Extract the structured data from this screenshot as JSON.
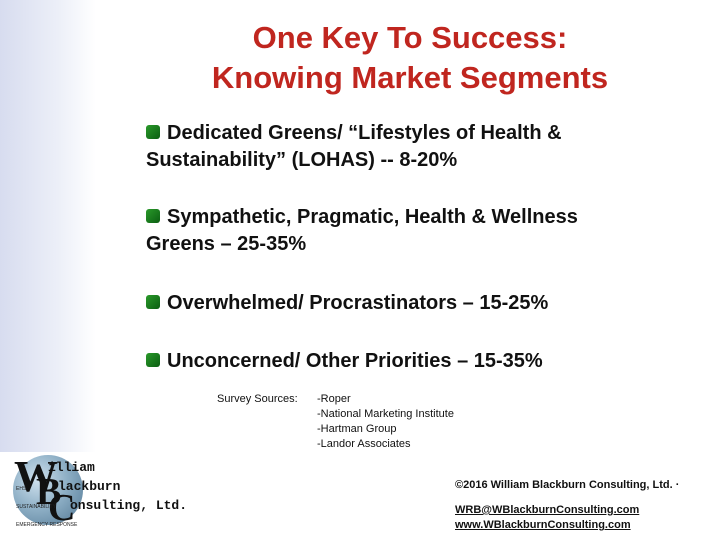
{
  "title": {
    "line1": "One Key To Success:",
    "line2": "Knowing Market Segments"
  },
  "bullets": [
    {
      "line1": "Dedicated Greens/ “Lifestyles of Health &",
      "line2": "Sustainability” (LOHAS) -- 8-20%"
    },
    {
      "line1": "Sympathetic, Pragmatic, Health & Wellness",
      "line2": "Greens – 25-35%"
    },
    {
      "line1": "Overwhelmed/ Procrastinators – 15-25%",
      "line2": ""
    },
    {
      "line1": "Unconcerned/ Other Priorities – 15-35%",
      "line2": ""
    }
  ],
  "sources": {
    "label": "Survey Sources:",
    "items": [
      "-Roper",
      "-National Marketing Institute",
      "-Hartman Group",
      "-Landor Associates"
    ]
  },
  "logo": {
    "letters": [
      "W",
      "B",
      "C"
    ],
    "words": [
      "illiam",
      "lackburn",
      "onsulting, Ltd."
    ],
    "small": [
      "EHS",
      "SUSTAINABILITY",
      "EMERGENCY RESPONSE"
    ]
  },
  "footer": {
    "copyright": "©2016 William Blackburn Consulting, Ltd. ·",
    "email": "WRB@WBlackburnConsulting.com",
    "website": "www.WBlackburnConsulting.com"
  }
}
